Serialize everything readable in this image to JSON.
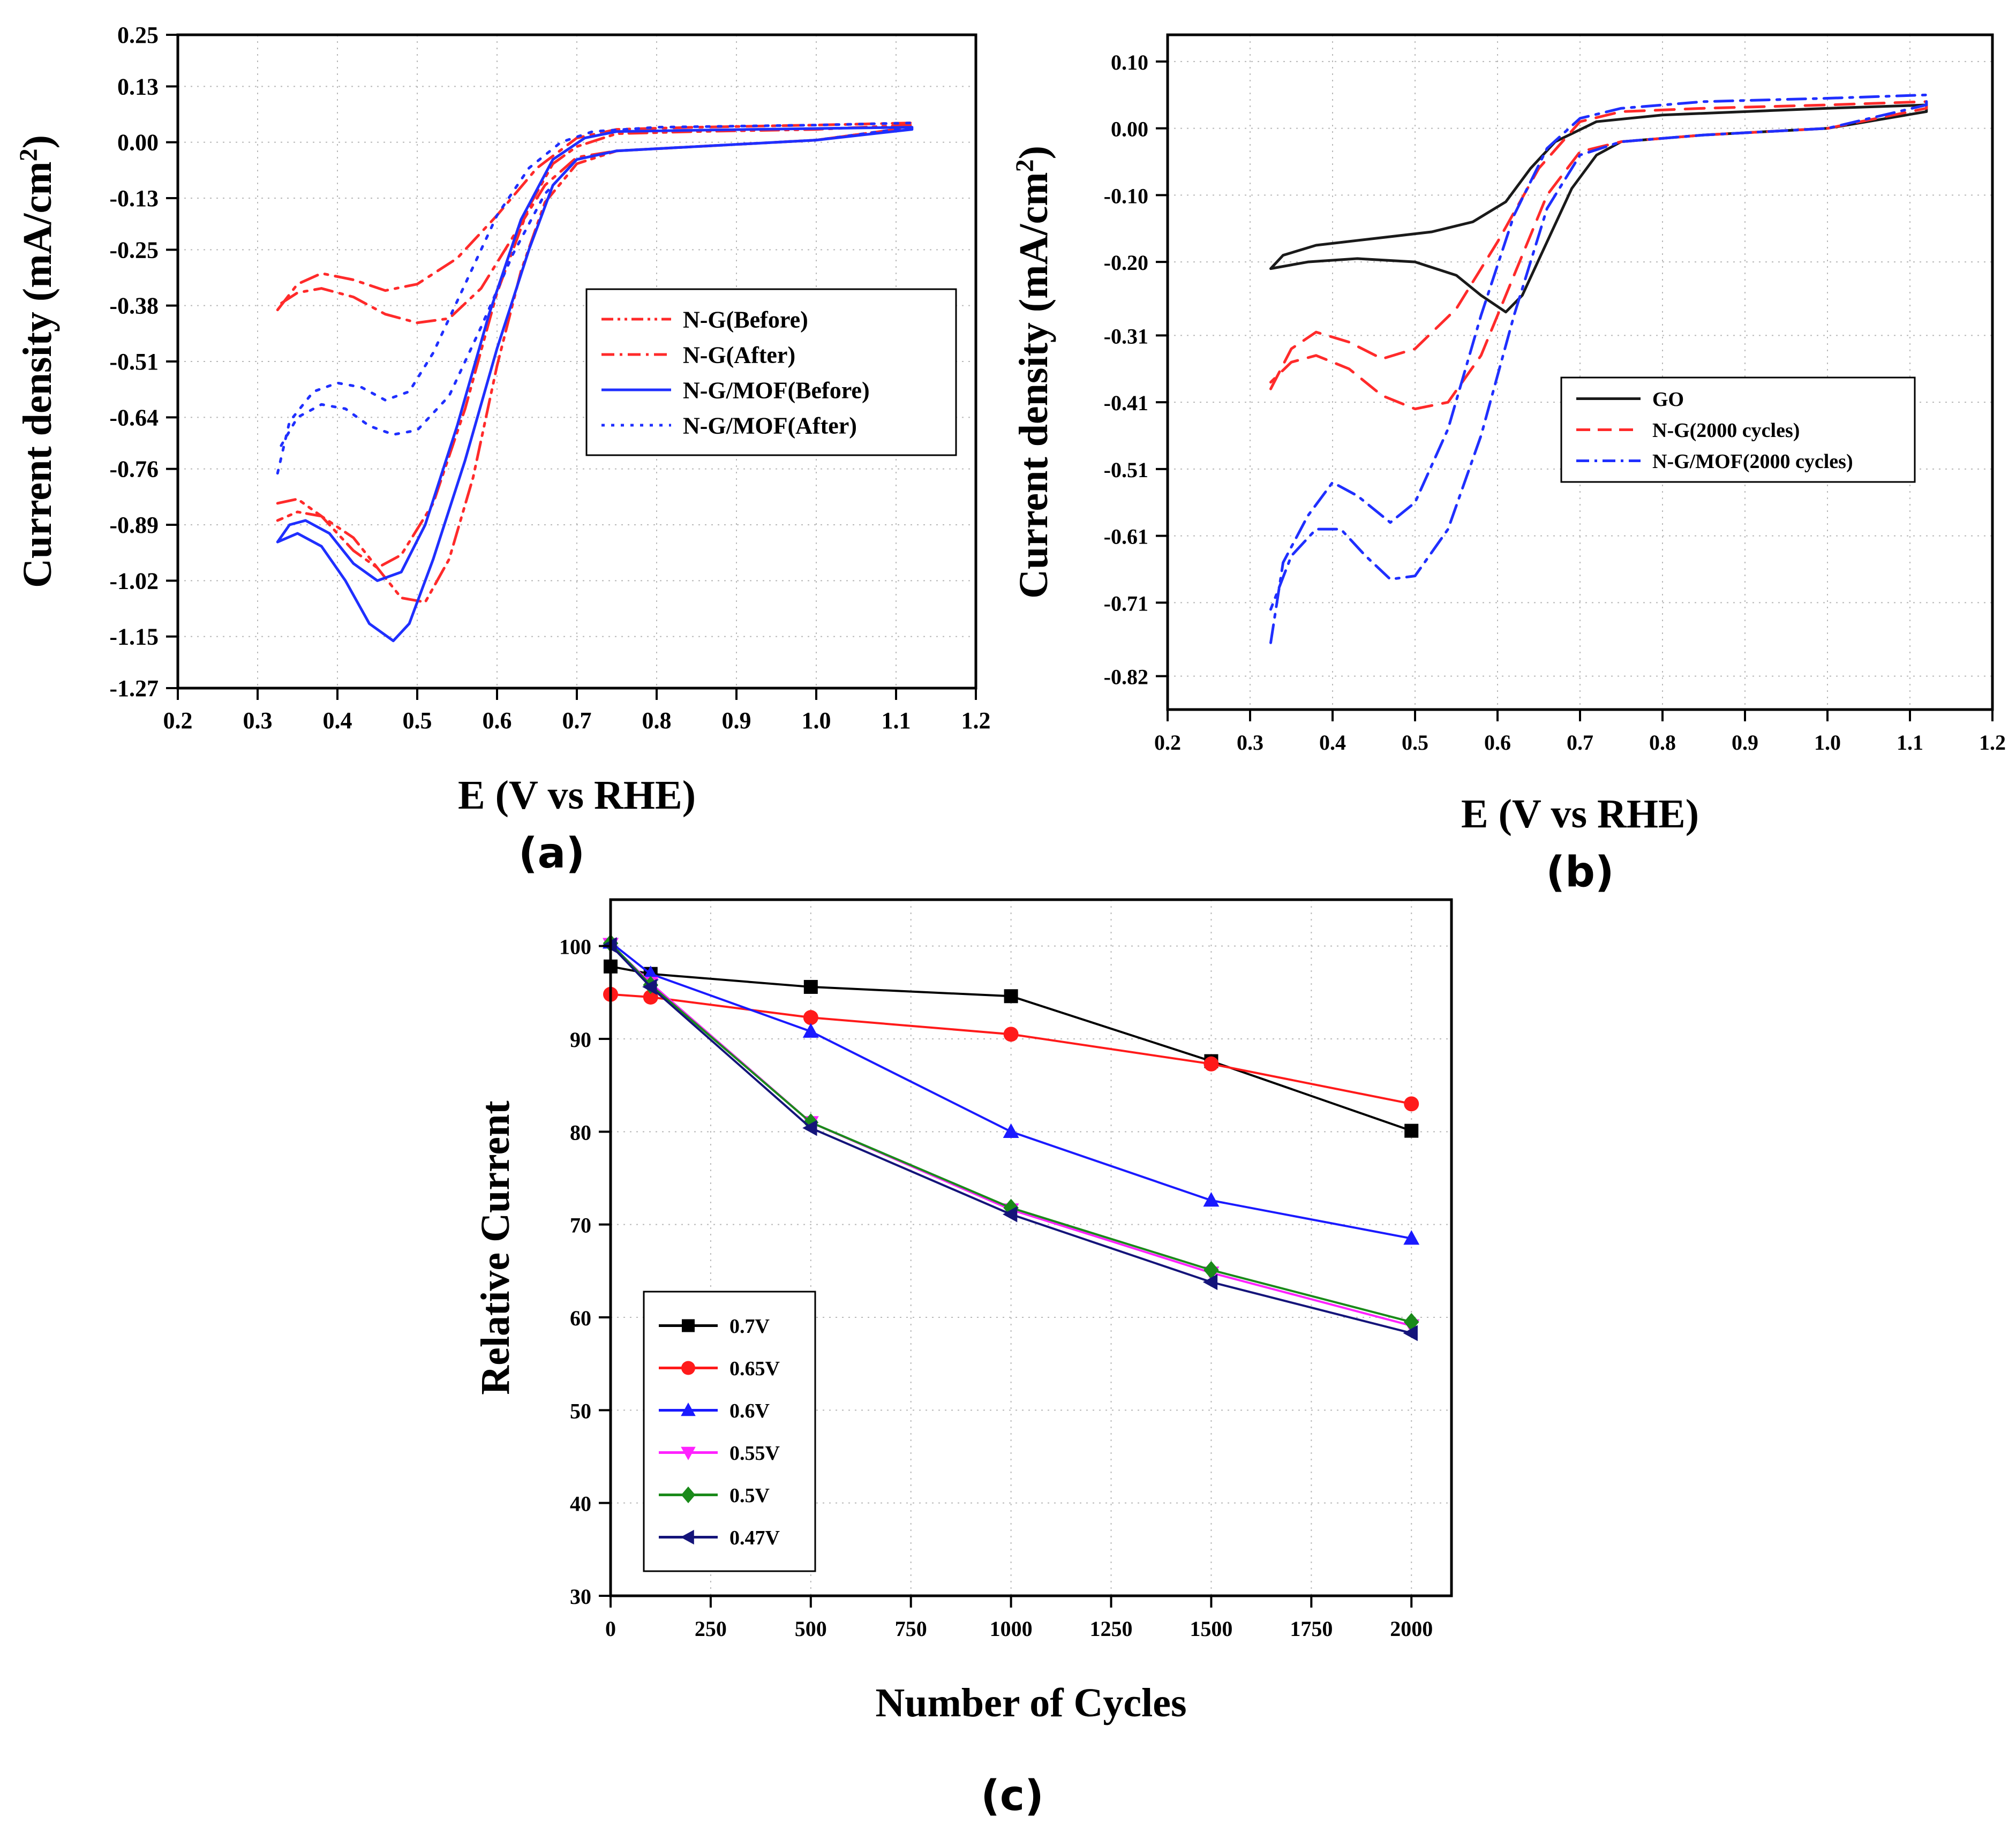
{
  "chart_data": [
    {
      "panel": "a",
      "type": "line",
      "panel_label": "(a)",
      "xlabel": "E (V vs RHE)",
      "ylabel": "Current density (mA/cm",
      "ylabel_sup": "2",
      "ylabel_close": ")",
      "xlim": [
        0.2,
        1.2
      ],
      "ylim": [
        -1.27,
        0.25
      ],
      "xticks": [
        "0.2",
        "0.3",
        "0.4",
        "0.5",
        "0.6",
        "0.7",
        "0.8",
        "0.9",
        "1.0",
        "1.1",
        "1.2"
      ],
      "yticks": [
        "0.25",
        "0.13",
        "0.00",
        "-0.13",
        "-0.25",
        "-0.38",
        "-0.51",
        "-0.64",
        "-0.76",
        "-0.89",
        "-1.02",
        "-1.15",
        "-1.27"
      ],
      "legend_position": "center-right",
      "series": [
        {
          "name": "N-G(Before)",
          "color": "#ff2a2a",
          "dash": "dashdotdot",
          "points": [
            [
              0.325,
              -0.84
            ],
            [
              0.35,
              -0.83
            ],
            [
              0.38,
              -0.87
            ],
            [
              0.42,
              -0.95
            ],
            [
              0.45,
              -0.99
            ],
            [
              0.48,
              -0.96
            ],
            [
              0.52,
              -0.84
            ],
            [
              0.56,
              -0.62
            ],
            [
              0.6,
              -0.35
            ],
            [
              0.64,
              -0.15
            ],
            [
              0.67,
              -0.05
            ],
            [
              0.7,
              -0.01
            ],
            [
              0.75,
              0.02
            ],
            [
              0.85,
              0.025
            ],
            [
              1.0,
              0.03
            ],
            [
              1.12,
              0.04
            ],
            [
              1.12,
              0.035
            ],
            [
              1.0,
              0.005
            ],
            [
              0.85,
              -0.01
            ],
            [
              0.75,
              -0.02
            ],
            [
              0.7,
              -0.05
            ],
            [
              0.66,
              -0.14
            ],
            [
              0.63,
              -0.3
            ],
            [
              0.6,
              -0.52
            ],
            [
              0.57,
              -0.78
            ],
            [
              0.54,
              -0.97
            ],
            [
              0.51,
              -1.07
            ],
            [
              0.48,
              -1.06
            ],
            [
              0.45,
              -0.99
            ],
            [
              0.42,
              -0.92
            ],
            [
              0.38,
              -0.87
            ],
            [
              0.35,
              -0.86
            ],
            [
              0.325,
              -0.88
            ]
          ]
        },
        {
          "name": "N-G(After)",
          "color": "#ff2a2a",
          "dash": "dashdot",
          "points": [
            [
              0.325,
              -0.39
            ],
            [
              0.35,
              -0.33
            ],
            [
              0.38,
              -0.305
            ],
            [
              0.42,
              -0.32
            ],
            [
              0.46,
              -0.345
            ],
            [
              0.5,
              -0.33
            ],
            [
              0.55,
              -0.27
            ],
            [
              0.6,
              -0.17
            ],
            [
              0.65,
              -0.06
            ],
            [
              0.7,
              0.01
            ],
            [
              0.75,
              0.03
            ],
            [
              0.85,
              0.035
            ],
            [
              1.0,
              0.04
            ],
            [
              1.12,
              0.045
            ],
            [
              1.12,
              0.035
            ],
            [
              1.0,
              0.005
            ],
            [
              0.85,
              -0.01
            ],
            [
              0.75,
              -0.02
            ],
            [
              0.7,
              -0.035
            ],
            [
              0.66,
              -0.1
            ],
            [
              0.62,
              -0.22
            ],
            [
              0.58,
              -0.34
            ],
            [
              0.54,
              -0.41
            ],
            [
              0.5,
              -0.42
            ],
            [
              0.46,
              -0.4
            ],
            [
              0.42,
              -0.36
            ],
            [
              0.38,
              -0.34
            ],
            [
              0.35,
              -0.35
            ],
            [
              0.325,
              -0.38
            ]
          ]
        },
        {
          "name": "N-G/MOF(Before)",
          "color": "#1f2fff",
          "dash": "solid",
          "points": [
            [
              0.325,
              -0.93
            ],
            [
              0.34,
              -0.89
            ],
            [
              0.36,
              -0.88
            ],
            [
              0.39,
              -0.91
            ],
            [
              0.42,
              -0.98
            ],
            [
              0.45,
              -1.02
            ],
            [
              0.48,
              -1.0
            ],
            [
              0.51,
              -0.89
            ],
            [
              0.55,
              -0.66
            ],
            [
              0.59,
              -0.4
            ],
            [
              0.63,
              -0.18
            ],
            [
              0.67,
              -0.04
            ],
            [
              0.71,
              0.01
            ],
            [
              0.75,
              0.025
            ],
            [
              0.85,
              0.028
            ],
            [
              1.0,
              0.032
            ],
            [
              1.12,
              0.035
            ],
            [
              1.12,
              0.03
            ],
            [
              1.0,
              0.005
            ],
            [
              0.85,
              -0.01
            ],
            [
              0.75,
              -0.02
            ],
            [
              0.7,
              -0.04
            ],
            [
              0.67,
              -0.1
            ],
            [
              0.64,
              -0.25
            ],
            [
              0.6,
              -0.48
            ],
            [
              0.56,
              -0.74
            ],
            [
              0.52,
              -0.97
            ],
            [
              0.49,
              -1.12
            ],
            [
              0.47,
              -1.16
            ],
            [
              0.44,
              -1.12
            ],
            [
              0.41,
              -1.02
            ],
            [
              0.38,
              -0.94
            ],
            [
              0.35,
              -0.91
            ],
            [
              0.325,
              -0.93
            ]
          ]
        },
        {
          "name": "N-G/MOF(After)",
          "color": "#1f2fff",
          "dash": "dot",
          "points": [
            [
              0.325,
              -0.77
            ],
            [
              0.34,
              -0.65
            ],
            [
              0.37,
              -0.58
            ],
            [
              0.4,
              -0.56
            ],
            [
              0.43,
              -0.57
            ],
            [
              0.46,
              -0.6
            ],
            [
              0.49,
              -0.58
            ],
            [
              0.52,
              -0.49
            ],
            [
              0.56,
              -0.33
            ],
            [
              0.6,
              -0.17
            ],
            [
              0.64,
              -0.06
            ],
            [
              0.68,
              0.0
            ],
            [
              0.72,
              0.025
            ],
            [
              0.8,
              0.035
            ],
            [
              1.0,
              0.04
            ],
            [
              1.12,
              0.045
            ],
            [
              1.12,
              0.035
            ],
            [
              1.0,
              0.005
            ],
            [
              0.85,
              -0.01
            ],
            [
              0.75,
              -0.02
            ],
            [
              0.7,
              -0.04
            ],
            [
              0.66,
              -0.12
            ],
            [
              0.62,
              -0.26
            ],
            [
              0.58,
              -0.43
            ],
            [
              0.54,
              -0.59
            ],
            [
              0.5,
              -0.67
            ],
            [
              0.47,
              -0.68
            ],
            [
              0.44,
              -0.66
            ],
            [
              0.41,
              -0.62
            ],
            [
              0.38,
              -0.61
            ],
            [
              0.35,
              -0.64
            ],
            [
              0.325,
              -0.72
            ]
          ]
        }
      ]
    },
    {
      "panel": "b",
      "type": "line",
      "panel_label": "(b)",
      "xlabel": "E (V vs RHE)",
      "ylabel": "Current density (mA/cm",
      "ylabel_sup": "2",
      "ylabel_close": ")",
      "xlim": [
        0.2,
        1.2
      ],
      "ylim": [
        -0.87,
        0.14
      ],
      "xticks": [
        "0.2",
        "0.3",
        "0.4",
        "0.5",
        "0.6",
        "0.7",
        "0.8",
        "0.9",
        "1.0",
        "1.1",
        "1.2"
      ],
      "yticks": [
        "0.10",
        "0.00",
        "-0.10",
        "-0.20",
        "-0.31",
        "-0.41",
        "-0.51",
        "-0.61",
        "-0.71",
        "-0.82"
      ],
      "legend_position": "center-right",
      "series": [
        {
          "name": "GO",
          "color": "#1a1a1a",
          "dash": "solid",
          "points": [
            [
              0.325,
              -0.21
            ],
            [
              0.34,
              -0.19
            ],
            [
              0.38,
              -0.175
            ],
            [
              0.45,
              -0.165
            ],
            [
              0.52,
              -0.155
            ],
            [
              0.57,
              -0.14
            ],
            [
              0.61,
              -0.11
            ],
            [
              0.64,
              -0.06
            ],
            [
              0.67,
              -0.02
            ],
            [
              0.72,
              0.01
            ],
            [
              0.8,
              0.02
            ],
            [
              1.0,
              0.03
            ],
            [
              1.12,
              0.035
            ],
            [
              1.12,
              0.025
            ],
            [
              1.0,
              0.0
            ],
            [
              0.85,
              -0.01
            ],
            [
              0.75,
              -0.02
            ],
            [
              0.72,
              -0.04
            ],
            [
              0.69,
              -0.09
            ],
            [
              0.66,
              -0.17
            ],
            [
              0.63,
              -0.25
            ],
            [
              0.61,
              -0.275
            ],
            [
              0.58,
              -0.25
            ],
            [
              0.55,
              -0.22
            ],
            [
              0.5,
              -0.2
            ],
            [
              0.43,
              -0.195
            ],
            [
              0.37,
              -0.2
            ],
            [
              0.325,
              -0.21
            ]
          ]
        },
        {
          "name": "N-G(2000 cycles)",
          "color": "#ff2a2a",
          "dash": "dash",
          "points": [
            [
              0.325,
              -0.39
            ],
            [
              0.35,
              -0.33
            ],
            [
              0.38,
              -0.305
            ],
            [
              0.42,
              -0.32
            ],
            [
              0.46,
              -0.345
            ],
            [
              0.5,
              -0.33
            ],
            [
              0.55,
              -0.27
            ],
            [
              0.6,
              -0.17
            ],
            [
              0.65,
              -0.06
            ],
            [
              0.7,
              0.01
            ],
            [
              0.75,
              0.025
            ],
            [
              0.85,
              0.03
            ],
            [
              1.0,
              0.035
            ],
            [
              1.12,
              0.04
            ],
            [
              1.12,
              0.03
            ],
            [
              1.0,
              0.0
            ],
            [
              0.85,
              -0.01
            ],
            [
              0.75,
              -0.02
            ],
            [
              0.7,
              -0.035
            ],
            [
              0.66,
              -0.1
            ],
            [
              0.62,
              -0.22
            ],
            [
              0.58,
              -0.34
            ],
            [
              0.54,
              -0.41
            ],
            [
              0.5,
              -0.42
            ],
            [
              0.46,
              -0.4
            ],
            [
              0.42,
              -0.36
            ],
            [
              0.38,
              -0.34
            ],
            [
              0.35,
              -0.35
            ],
            [
              0.325,
              -0.38
            ]
          ]
        },
        {
          "name": "N-G/MOF(2000 cycles)",
          "color": "#1f2fff",
          "dash": "dashdot",
          "points": [
            [
              0.325,
              -0.77
            ],
            [
              0.34,
              -0.65
            ],
            [
              0.37,
              -0.58
            ],
            [
              0.4,
              -0.53
            ],
            [
              0.43,
              -0.55
            ],
            [
              0.47,
              -0.59
            ],
            [
              0.5,
              -0.56
            ],
            [
              0.54,
              -0.45
            ],
            [
              0.58,
              -0.28
            ],
            [
              0.62,
              -0.13
            ],
            [
              0.66,
              -0.03
            ],
            [
              0.7,
              0.015
            ],
            [
              0.75,
              0.03
            ],
            [
              0.85,
              0.04
            ],
            [
              1.0,
              0.045
            ],
            [
              1.12,
              0.05
            ],
            [
              1.12,
              0.035
            ],
            [
              1.0,
              0.0
            ],
            [
              0.85,
              -0.01
            ],
            [
              0.75,
              -0.02
            ],
            [
              0.7,
              -0.04
            ],
            [
              0.66,
              -0.12
            ],
            [
              0.62,
              -0.28
            ],
            [
              0.58,
              -0.46
            ],
            [
              0.54,
              -0.6
            ],
            [
              0.5,
              -0.67
            ],
            [
              0.47,
              -0.675
            ],
            [
              0.44,
              -0.64
            ],
            [
              0.41,
              -0.6
            ],
            [
              0.38,
              -0.6
            ],
            [
              0.35,
              -0.64
            ],
            [
              0.325,
              -0.72
            ]
          ]
        }
      ]
    },
    {
      "panel": "c",
      "type": "line",
      "panel_label": "(c)",
      "xlabel": "Number of Cycles",
      "ylabel": "Relative Current",
      "xlim": [
        0,
        2100
      ],
      "ylim": [
        30,
        105
      ],
      "xticks": [
        "0",
        "250",
        "500",
        "750",
        "1000",
        "1250",
        "1500",
        "1750",
        "2000"
      ],
      "yticks": [
        "30",
        "40",
        "50",
        "60",
        "70",
        "80",
        "90",
        "100"
      ],
      "legend_position": "bottom-left",
      "x": [
        0,
        100,
        500,
        1000,
        1500,
        2000
      ],
      "series": [
        {
          "name": "0.7V",
          "color": "#000000",
          "marker": "square",
          "values": [
            97.8,
            97.0,
            95.6,
            94.6,
            87.6,
            80.1
          ]
        },
        {
          "name": "0.65V",
          "color": "#ff1a1a",
          "marker": "circle",
          "values": [
            94.8,
            94.5,
            92.3,
            90.5,
            87.3,
            83.0
          ]
        },
        {
          "name": "0.6V",
          "color": "#1a1aff",
          "marker": "triangle-up",
          "values": [
            100.4,
            97.0,
            90.8,
            80.0,
            72.6,
            68.5
          ]
        },
        {
          "name": "0.55V",
          "color": "#ff22ff",
          "marker": "triangle-down",
          "values": [
            100.2,
            96.0,
            81.0,
            71.6,
            64.8,
            59.1
          ]
        },
        {
          "name": "0.5V",
          "color": "#1a8a1a",
          "marker": "diamond",
          "values": [
            100.3,
            95.8,
            81.0,
            71.8,
            65.1,
            59.5
          ]
        },
        {
          "name": "0.47V",
          "color": "#14147a",
          "marker": "triangle-left",
          "values": [
            100.1,
            95.6,
            80.4,
            71.1,
            63.8,
            58.3
          ]
        }
      ]
    }
  ]
}
